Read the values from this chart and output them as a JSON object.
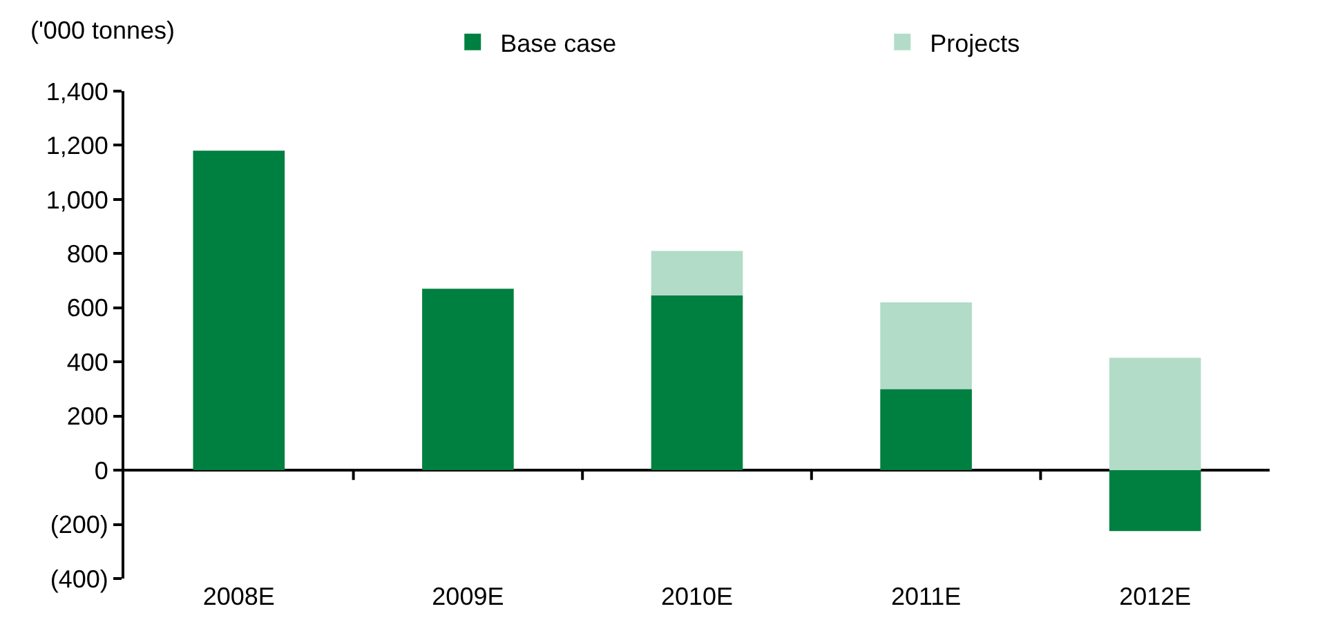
{
  "chart_data": {
    "type": "bar",
    "ylabel": "('000 tonnes)",
    "categories": [
      "2008E",
      "2009E",
      "2010E",
      "2011E",
      "2012E"
    ],
    "stacked": true,
    "series": [
      {
        "name": "Base case",
        "color": "#008040",
        "values": [
          1180,
          670,
          645,
          300,
          -225
        ]
      },
      {
        "name": "Projects",
        "color": "#b2dcc8",
        "values": [
          null,
          null,
          165,
          320,
          415
        ]
      }
    ],
    "ylim": [
      -400,
      1400
    ],
    "yticks": [
      {
        "value": -400,
        "label": "(400)"
      },
      {
        "value": -200,
        "label": "(200)"
      },
      0,
      200,
      400,
      600,
      800,
      {
        "value": 1000,
        "label": "1,000"
      },
      {
        "value": 1200,
        "label": "1,200"
      },
      {
        "value": 1400,
        "label": "1,400"
      }
    ],
    "legend": "top"
  }
}
